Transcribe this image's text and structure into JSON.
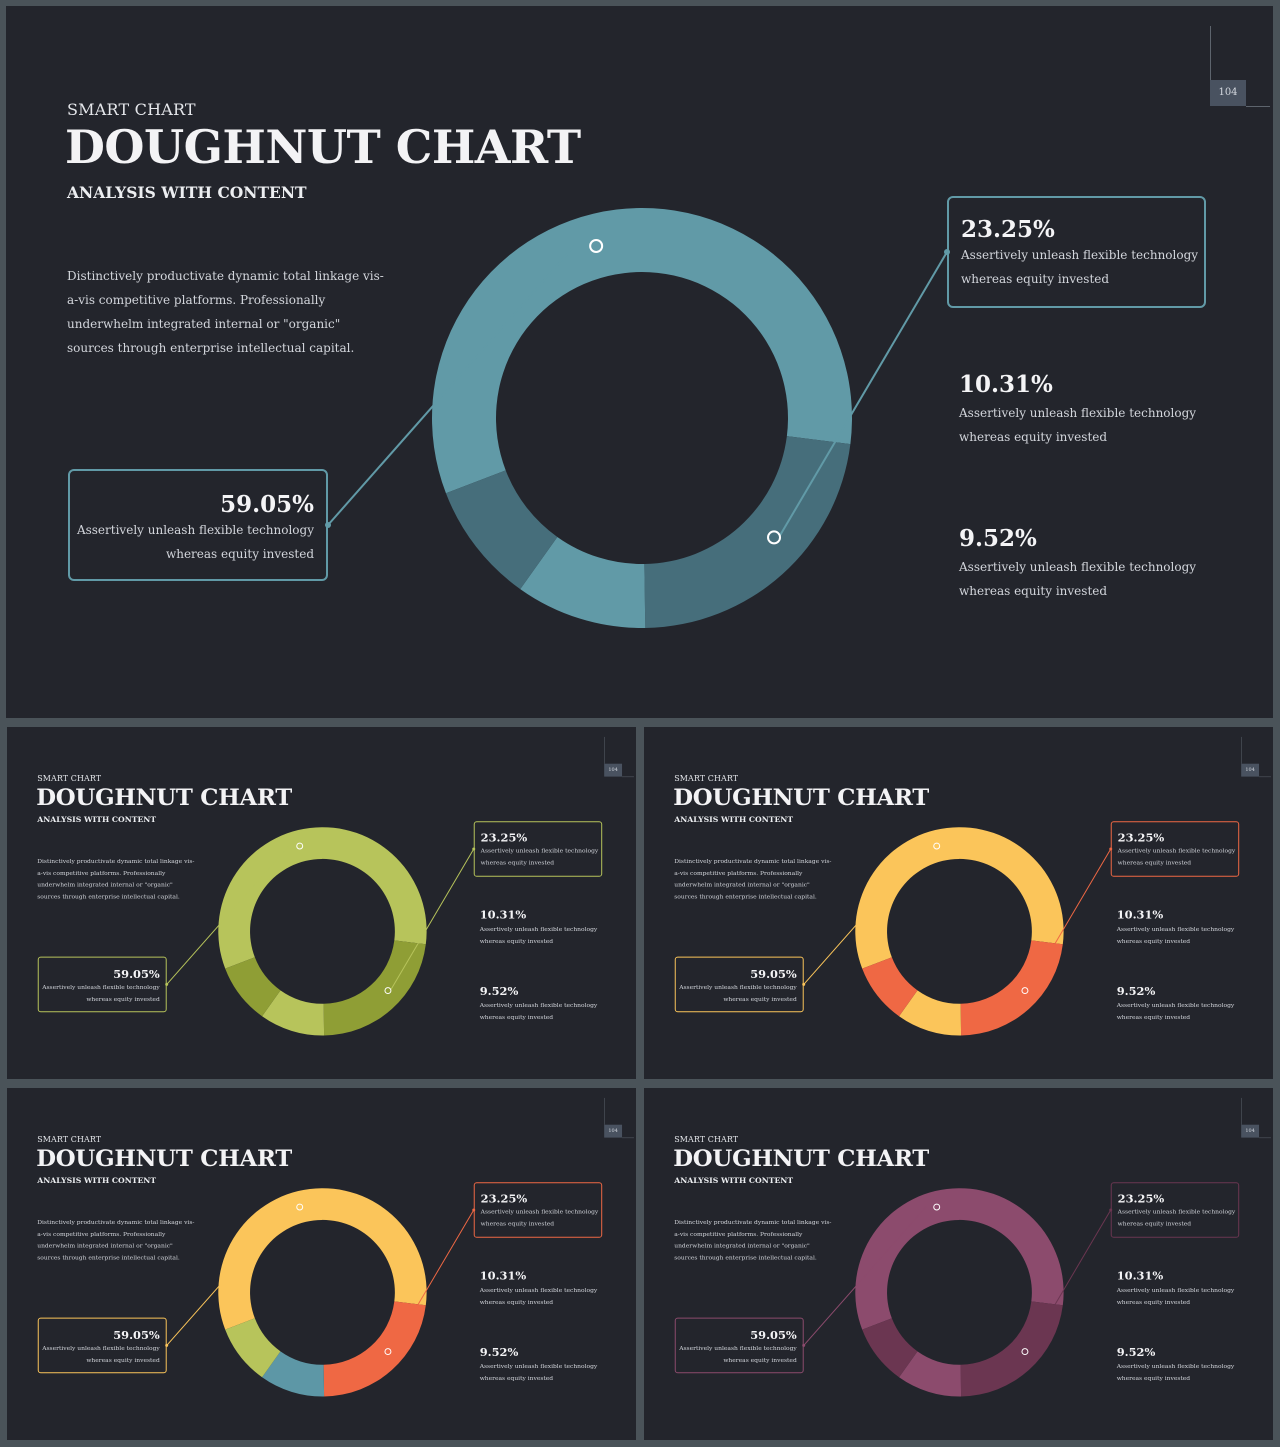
{
  "slides": [
    {
      "page": "104",
      "palette": [
        "#619aa7",
        "#466e7b",
        "#619aa7",
        "#466e7b"
      ],
      "accent": "#619aa7",
      "selected": true
    },
    {
      "page": "104",
      "palette": [
        "#b7c45b",
        "#8f9e35",
        "#b7c45b",
        "#8f9e35"
      ],
      "accent": "#b7c45b"
    },
    {
      "page": "104",
      "palette": [
        "#fbc55a",
        "#ef6844",
        "#fbc55a",
        "#ef6844"
      ],
      "accent": "#fbc55a",
      "accent2": "#ef6844"
    },
    {
      "page": "104",
      "palette": [
        "#fbc55a",
        "#ef6844",
        "#5d97a6",
        "#b7c45b"
      ],
      "accent": "#fbc55a",
      "accent2": "#ef6844"
    },
    {
      "page": "104",
      "palette": [
        "#8c4b6d",
        "#6b3651",
        "#8c4b6d",
        "#6b3651"
      ],
      "accent": "#8c4b6d",
      "accent2": "#6b3651"
    }
  ],
  "content": {
    "kicker": "SMART CHART",
    "title": "DOUGHNUT CHART",
    "subtitle": "ANALYSIS WITH CONTENT",
    "description": "Distinctively productivate dynamic total linkage vis-a-vis competitive platforms. Professionally underwhelm  integrated internal or \"organic\" sources through enterprise intellectual capital.",
    "caption_line1": "Assertively unleash flexible technology",
    "caption_line2": "whereas equity  invested"
  },
  "chart_data": {
    "type": "pie",
    "variant": "doughnut",
    "categories": [
      "59.05%",
      "23.25%",
      "10.31%",
      "9.52%"
    ],
    "values": [
      59.05,
      23.25,
      10.31,
      9.52
    ],
    "labels": [
      "59.05%",
      "23.25%",
      "10.31%",
      "9.52%"
    ]
  }
}
